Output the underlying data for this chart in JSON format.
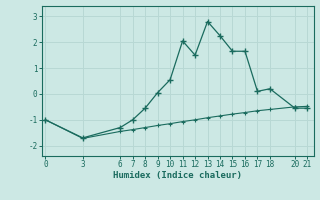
{
  "xlabel": "Humidex (Indice chaleur)",
  "bg_color": "#cce8e4",
  "line_color": "#1a6b5e",
  "grid_color": "#b8d8d4",
  "line1_x": [
    0,
    3,
    6,
    7,
    8,
    9,
    10,
    11,
    12,
    13,
    14,
    15,
    16,
    17,
    18,
    20,
    21
  ],
  "line1_y": [
    -1.0,
    -1.7,
    -1.3,
    -1.0,
    -0.55,
    0.05,
    0.55,
    2.05,
    1.5,
    2.8,
    2.25,
    1.65,
    1.65,
    0.1,
    0.2,
    -0.55,
    -0.55
  ],
  "line2_x": [
    0,
    3,
    6,
    7,
    8,
    9,
    10,
    11,
    12,
    13,
    14,
    15,
    16,
    17,
    18,
    20,
    21
  ],
  "line2_y": [
    -1.0,
    -1.72,
    -1.45,
    -1.38,
    -1.3,
    -1.22,
    -1.15,
    -1.07,
    -1.0,
    -0.92,
    -0.85,
    -0.78,
    -0.72,
    -0.65,
    -0.6,
    -0.5,
    -0.48
  ],
  "xticks": [
    0,
    3,
    6,
    7,
    8,
    9,
    10,
    11,
    12,
    13,
    14,
    15,
    16,
    17,
    18,
    20,
    21
  ],
  "yticks": [
    -2,
    -1,
    0,
    1,
    2,
    3
  ],
  "xlim": [
    -0.3,
    21.5
  ],
  "ylim": [
    -2.4,
    3.4
  ]
}
